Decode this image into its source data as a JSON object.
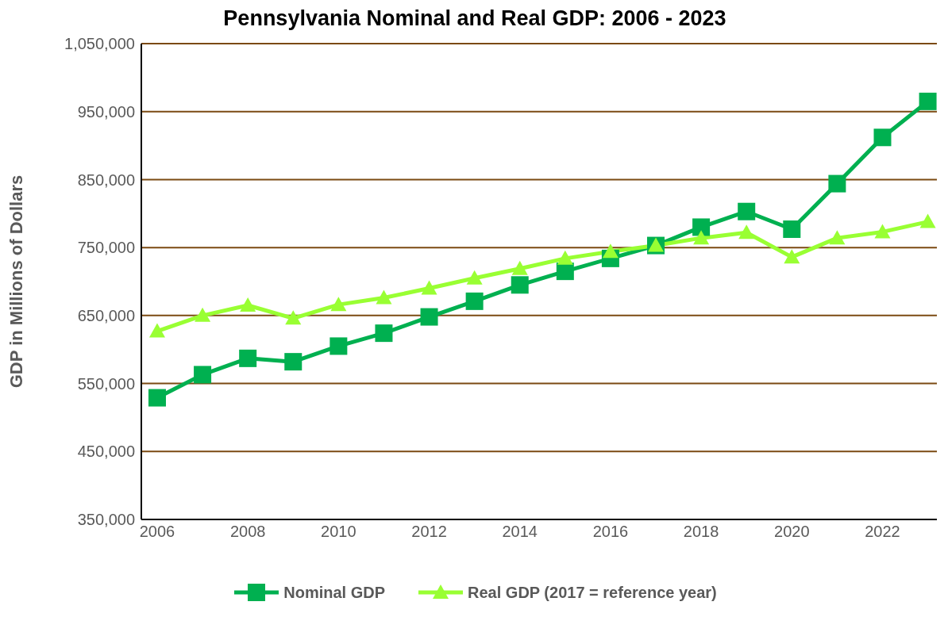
{
  "chart_data": {
    "type": "line",
    "title": "Pennsylvania Nominal and Real GDP: 2006 - 2023",
    "ylabel": "GDP in Millions of Dollars",
    "x": [
      2006,
      2007,
      2008,
      2009,
      2010,
      2011,
      2012,
      2013,
      2014,
      2015,
      2016,
      2017,
      2018,
      2019,
      2020,
      2021,
      2022,
      2023
    ],
    "series": [
      {
        "name": "Nominal GDP",
        "color": "#00b050",
        "marker": "square",
        "values": [
          529000,
          563000,
          587000,
          582000,
          605000,
          624000,
          648000,
          671000,
          695000,
          715000,
          734000,
          753000,
          780000,
          803000,
          777000,
          844000,
          912000,
          965000
        ]
      },
      {
        "name": "Real GDP (2017 = reference year)",
        "color": "#99ff33",
        "marker": "triangle",
        "values": [
          627000,
          650000,
          665000,
          646000,
          666000,
          676000,
          690000,
          705000,
          719000,
          734000,
          744000,
          753000,
          764000,
          772000,
          736000,
          764000,
          773000,
          788000
        ]
      }
    ],
    "xlim": [
      2005.65,
      2023.2
    ],
    "xticks": [
      2006,
      2008,
      2010,
      2012,
      2014,
      2016,
      2018,
      2020,
      2022
    ],
    "ylim": [
      350000,
      1050000
    ],
    "yticks": [
      {
        "value": 350000,
        "label": "350,000"
      },
      {
        "value": 450000,
        "label": "450,000"
      },
      {
        "value": 550000,
        "label": "550,000"
      },
      {
        "value": 650000,
        "label": "650,000"
      },
      {
        "value": 750000,
        "label": "750,000"
      },
      {
        "value": 850000,
        "label": "850,000"
      },
      {
        "value": 950000,
        "label": "950,000"
      },
      {
        "value": 1050000,
        "label": "1,050,000"
      }
    ],
    "grid": "y",
    "legend": "bottom",
    "line_style": "solid"
  }
}
